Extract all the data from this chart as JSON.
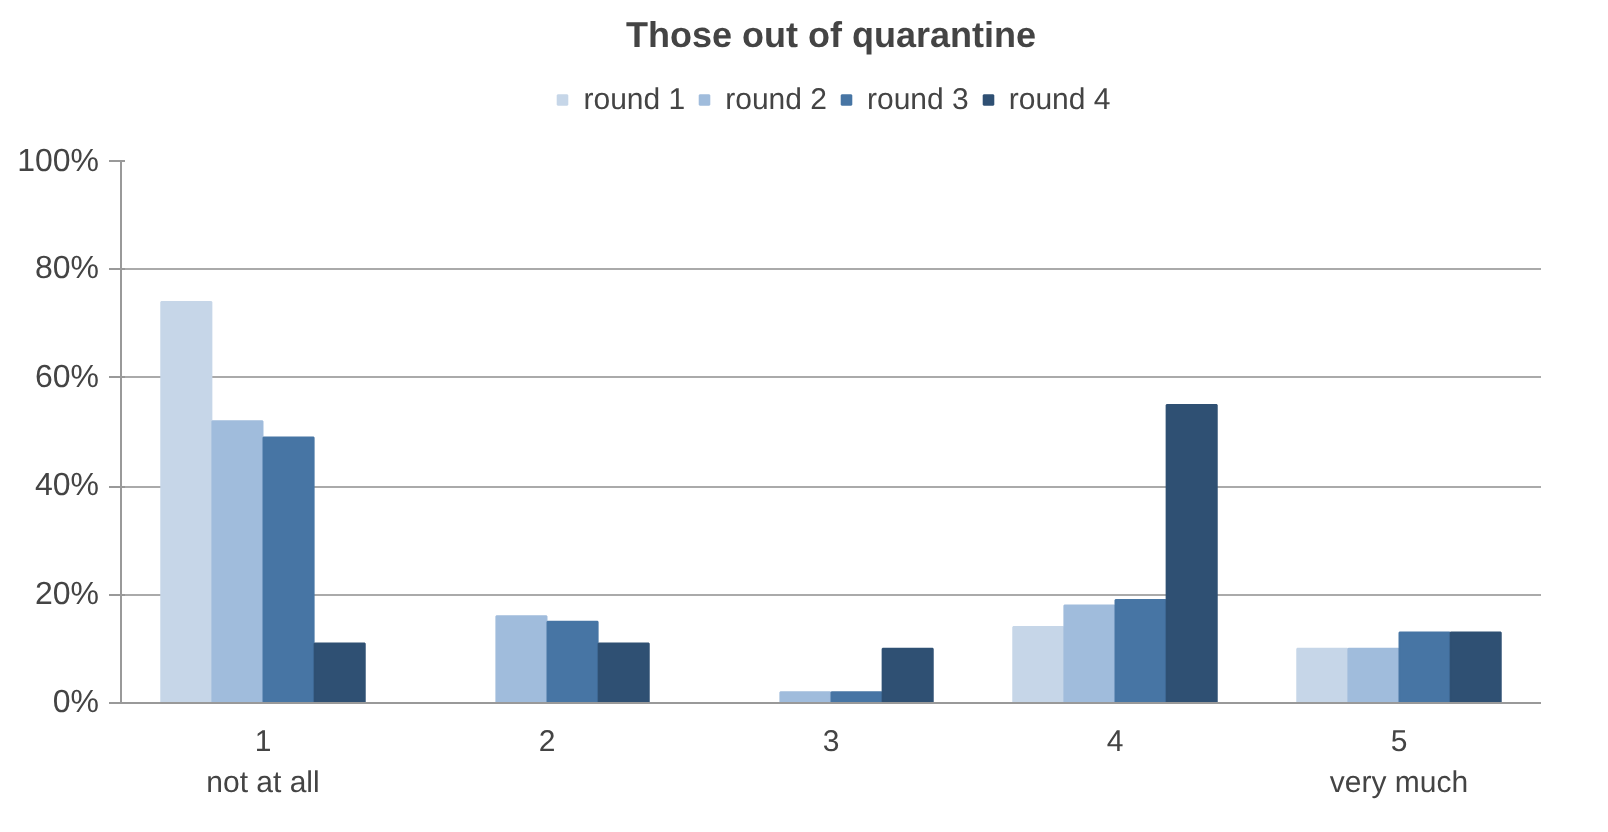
{
  "chart_data": {
    "type": "bar",
    "title": "Those out of quarantine",
    "categories": [
      "1\nnot at all",
      "2",
      "3",
      "4",
      "5\nvery much"
    ],
    "series": [
      {
        "name": "round 1",
        "color": "#c6d6e8",
        "values": [
          74,
          0,
          0,
          14,
          10
        ]
      },
      {
        "name": "round 2",
        "color": "#a0bcdc",
        "values": [
          52,
          16,
          2,
          18,
          10
        ]
      },
      {
        "name": "round 3",
        "color": "#4775a4",
        "values": [
          49,
          15,
          2,
          19,
          13
        ]
      },
      {
        "name": "round 4",
        "color": "#2f5073",
        "values": [
          11,
          11,
          10,
          55,
          13
        ]
      }
    ],
    "ylim": [
      0,
      100
    ],
    "yticks": [
      {
        "value": 0,
        "label": "0%"
      },
      {
        "value": 20,
        "label": "20%"
      },
      {
        "value": 40,
        "label": "40%"
      },
      {
        "value": 60,
        "label": "60%"
      },
      {
        "value": 80,
        "label": "80%"
      },
      {
        "value": 100,
        "label": "100%"
      }
    ],
    "grid": "y",
    "legend": "top"
  }
}
